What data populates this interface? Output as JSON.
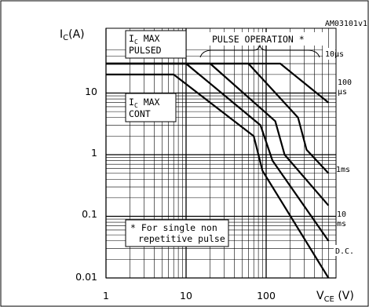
{
  "chart_data": {
    "type": "line",
    "figure_id": "AM03101v1",
    "xlabel": "VCE (V)",
    "xlabel_main": "V",
    "xlabel_sub": "CE",
    "xlabel_unit": " (V)",
    "ylabel": "IC(A)",
    "ylabel_main": "I",
    "ylabel_sub": "C",
    "ylabel_unit": "(A)",
    "xscale": "log",
    "yscale": "log",
    "xlim": [
      1,
      600
    ],
    "ylim": [
      0.01,
      50
    ],
    "xticks": [
      "1",
      "10",
      "100"
    ],
    "yticks": [
      "10",
      "1",
      "0.1",
      "0.01"
    ],
    "grid": true,
    "annotations": {
      "ic_max_pulsed": [
        "I",
        "C",
        " MAX",
        "PULSED"
      ],
      "ic_max_cont": [
        "I",
        "C",
        " MAX",
        "CONT"
      ],
      "pulse_operation": "PULSE OPERATION *",
      "footnote_line1": "* For single non",
      "footnote_line2": "repetitive pulse"
    },
    "curve_labels": {
      "t10us": "10µs",
      "t100us_a": "100",
      "t100us_b": "µs",
      "t1ms": "1ms",
      "t10ms_a": "10",
      "t10ms_b": "ms",
      "dc": "D.C."
    },
    "ic_max_pulsed_level": 30,
    "ic_max_cont_level": 20,
    "series": [
      {
        "id": "t10us",
        "x": [
          1,
          150,
          600
        ],
        "y": [
          30,
          30,
          7
        ]
      },
      {
        "id": "t100us",
        "x": [
          1,
          60,
          250,
          320,
          600
        ],
        "y": [
          30,
          30,
          4,
          1.2,
          0.5
        ]
      },
      {
        "id": "t1ms",
        "x": [
          1,
          20,
          130,
          170,
          600
        ],
        "y": [
          30,
          30,
          3.5,
          1,
          0.15
        ]
      },
      {
        "id": "t10ms",
        "x": [
          1,
          10,
          85,
          120,
          600
        ],
        "y": [
          30,
          30,
          3,
          0.8,
          0.04
        ]
      },
      {
        "id": "dc",
        "x": [
          1,
          7,
          70,
          90,
          600
        ],
        "y": [
          20,
          20,
          2,
          0.55,
          0.01
        ]
      }
    ]
  }
}
